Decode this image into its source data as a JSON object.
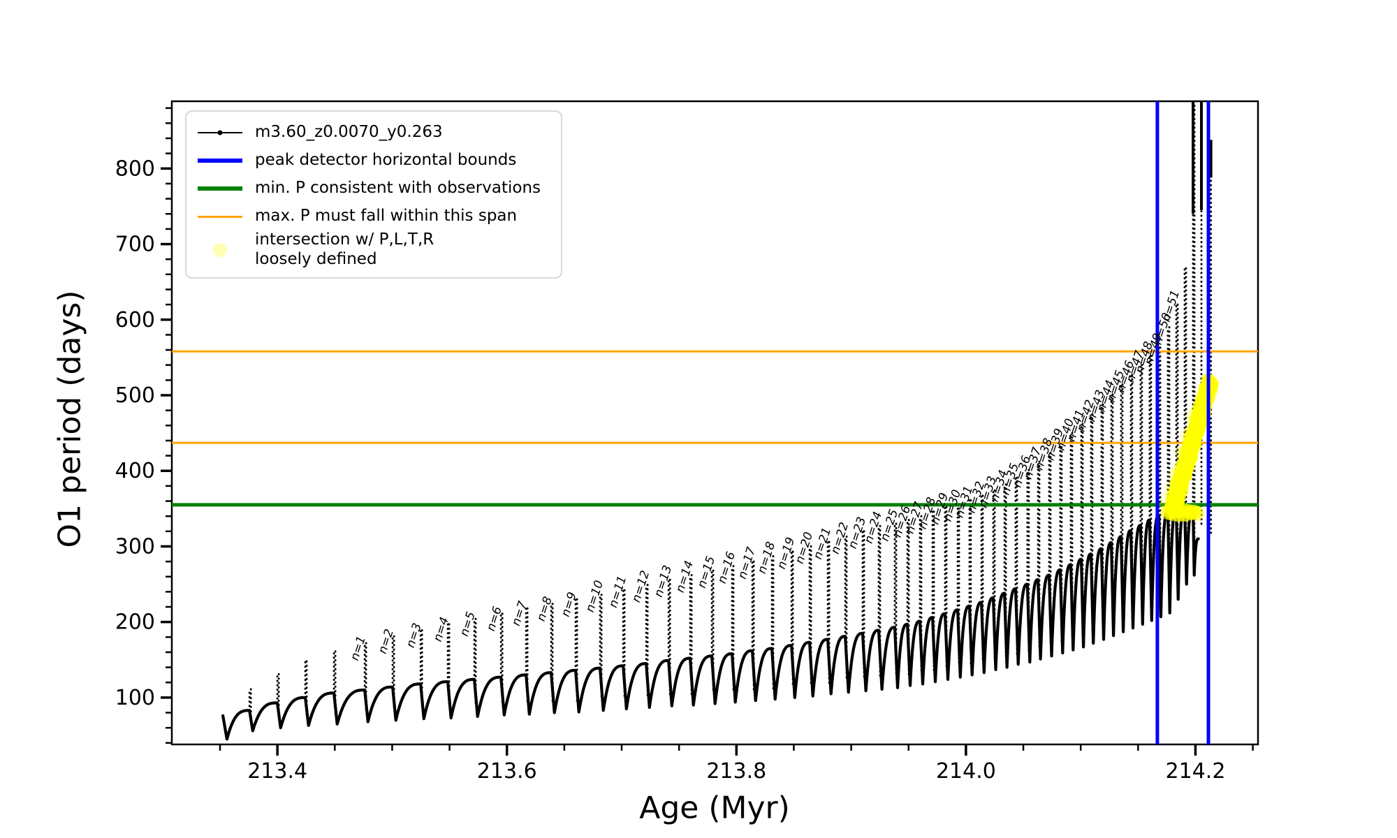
{
  "chart_data": {
    "type": "line",
    "title": "",
    "xlabel": "Age (Myr)",
    "ylabel": "O1 period (days)",
    "xlim": [
      213.308,
      214.2545
    ],
    "ylim": [
      38,
      889
    ],
    "x_major_ticks": [
      213.4,
      213.6,
      213.8,
      214.0,
      214.2
    ],
    "x_minor_step": 0.05,
    "y_major_ticks": [
      100,
      200,
      300,
      400,
      500,
      600,
      700,
      800
    ],
    "y_minor_step": 20,
    "grid": false,
    "legend_position": "upper left",
    "colors": {
      "series": "#000000",
      "peak_bounds": "#0000ff",
      "min_P": "#008000",
      "max_P_span": "#ffa500",
      "intersection": "#ffff00",
      "frame": "#000000"
    },
    "series": {
      "label": "m3.60_z0.0070_y0.263",
      "color": "#000000"
    },
    "hlines": {
      "min_P_days": 355,
      "max_P_span_days": [
        437,
        558
      ]
    },
    "peak_detector_bounds_Myr": [
      214.1668,
      214.2113
    ],
    "start": {
      "age": 213.3525,
      "period": 76,
      "dip_age": 213.356,
      "dip_period": 45
    },
    "envelope_end": {
      "age": 214.2025,
      "period": 310
    },
    "teeth_format": [
      "age_Myr",
      "spike_peak_days",
      "envelope_days",
      "dip_days",
      "n_label_or_0"
    ],
    "teeth": [
      [
        213.3757,
        111,
        83,
        56,
        0
      ],
      [
        213.4,
        131,
        93,
        60,
        0
      ],
      [
        213.4243,
        148,
        100,
        63,
        0
      ],
      [
        213.4493,
        161,
        106,
        65,
        0
      ],
      [
        213.4761,
        172,
        110,
        68,
        1
      ],
      [
        213.5004,
        181,
        114,
        70,
        2
      ],
      [
        213.5248,
        189,
        118,
        72,
        3
      ],
      [
        213.5485,
        197,
        121,
        73,
        4
      ],
      [
        213.5716,
        204,
        124,
        75,
        5
      ],
      [
        213.5948,
        211,
        127,
        77,
        6
      ],
      [
        213.6167,
        218,
        130,
        78,
        7
      ],
      [
        213.6386,
        224,
        133,
        80,
        8
      ],
      [
        213.6599,
        230,
        136,
        81,
        9
      ],
      [
        213.6812,
        236,
        139,
        83,
        10
      ],
      [
        213.7013,
        242,
        142,
        85,
        11
      ],
      [
        213.7214,
        249,
        145,
        87,
        12
      ],
      [
        213.7409,
        256,
        149,
        89,
        13
      ],
      [
        213.7597,
        262,
        152,
        90,
        14
      ],
      [
        213.7786,
        268,
        155,
        92,
        15
      ],
      [
        213.7962,
        274,
        158,
        94,
        16
      ],
      [
        213.8139,
        280,
        162,
        96,
        17
      ],
      [
        213.8309,
        287,
        165,
        98,
        18
      ],
      [
        213.848,
        293,
        169,
        100,
        19
      ],
      [
        213.8638,
        300,
        173,
        102,
        20
      ],
      [
        213.8796,
        306,
        177,
        105,
        21
      ],
      [
        213.8948,
        313,
        181,
        107,
        22
      ],
      [
        213.91,
        320,
        185,
        109,
        23
      ],
      [
        213.924,
        327,
        189,
        111,
        24
      ],
      [
        213.938,
        330,
        193,
        113,
        25
      ],
      [
        213.949,
        335,
        197,
        116,
        26
      ],
      [
        213.9599,
        340,
        201,
        118,
        27
      ],
      [
        213.9709,
        346,
        206,
        121,
        28
      ],
      [
        213.9818,
        352,
        211,
        124,
        29
      ],
      [
        213.9928,
        356,
        216,
        127,
        30
      ],
      [
        214.0031,
        361,
        221,
        130,
        31
      ],
      [
        214.0135,
        367,
        226,
        133,
        32
      ],
      [
        214.0238,
        374,
        232,
        137,
        33
      ],
      [
        214.0336,
        382,
        238,
        140,
        34
      ],
      [
        214.0433,
        391,
        244,
        144,
        35
      ],
      [
        214.0536,
        401,
        250,
        147,
        36
      ],
      [
        214.0628,
        412,
        256,
        151,
        37
      ],
      [
        214.0725,
        424,
        262,
        155,
        38
      ],
      [
        214.0822,
        437,
        269,
        159,
        39
      ],
      [
        214.0914,
        450,
        276,
        163,
        40
      ],
      [
        214.1005,
        462,
        283,
        167,
        41
      ],
      [
        214.109,
        475,
        290,
        172,
        42
      ],
      [
        214.1181,
        488,
        297,
        177,
        43
      ],
      [
        214.1267,
        501,
        305,
        182,
        44
      ],
      [
        214.1352,
        514,
        313,
        187,
        45
      ],
      [
        214.1437,
        527,
        321,
        192,
        46
      ],
      [
        214.1522,
        540,
        328,
        197,
        47
      ],
      [
        214.1601,
        552,
        335,
        202,
        48
      ],
      [
        214.1681,
        563,
        341,
        207,
        49
      ],
      [
        214.176,
        590,
        346,
        212,
        50
      ],
      [
        214.1833,
        620,
        350,
        230,
        51
      ],
      [
        214.1906,
        668,
        352,
        250,
        0
      ],
      [
        214.1979,
        889,
        354,
        262,
        0
      ]
    ],
    "tall_spikes": [
      {
        "age": 214.1979,
        "dots": null,
        "solid": [
          740,
          889
        ]
      },
      {
        "age": 214.2052,
        "dots": [
          330,
          889
        ],
        "solid": [
          745,
          889
        ]
      },
      {
        "age": 214.2135,
        "dots": [
          318,
          838
        ],
        "solid": [
          788,
          838
        ]
      }
    ],
    "yellow_blob": {
      "color": "#ffff00",
      "core_from": [
        214.18,
        351
      ],
      "core_to": [
        214.213,
        521
      ],
      "trail_from": [
        214.1735,
        356
      ],
      "trail_to": [
        214.1991,
        480
      ],
      "bottom_from": [
        214.176,
        345
      ],
      "bottom_to": [
        214.201,
        345
      ]
    },
    "legend": {
      "items": [
        {
          "type": "line-marker",
          "color": "#000000",
          "label": "m3.60_z0.0070_y0.263"
        },
        {
          "type": "line-thick",
          "color": "#0000ff",
          "label": "peak detector horizontal bounds"
        },
        {
          "type": "line-thick",
          "color": "#008000",
          "label": "min. P consistent with observations"
        },
        {
          "type": "line-thin",
          "color": "#ffa500",
          "label": "max. P must fall within this span"
        },
        {
          "type": "marker",
          "color": "#ffff00",
          "label": "intersection w/ P,L,T,R\nloosely defined"
        }
      ]
    }
  }
}
